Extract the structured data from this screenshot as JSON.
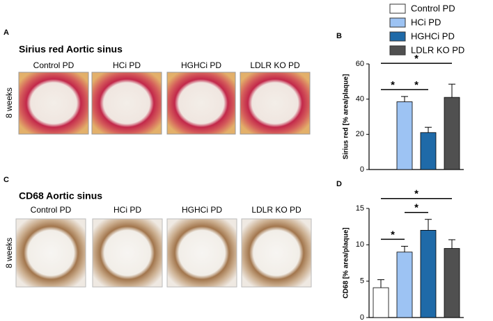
{
  "panel_labels": [
    "A",
    "B",
    "C",
    "D"
  ],
  "sections": [
    {
      "title": "Sirius red Aortic sinus",
      "row_label": "8 weeks",
      "image_labels": [
        "Control PD",
        "HCi PD",
        "HGHCi PD",
        "LDLR KO PD"
      ]
    },
    {
      "title": "CD68 Aortic sinus",
      "row_label": "8 weeks",
      "image_labels": [
        "Control PD",
        "HCi PD",
        "HGHCi PD",
        "LDLR KO PD"
      ]
    }
  ],
  "chart_data": [
    {
      "type": "bar",
      "y_label": "Sirius red [% area/plaque]",
      "categories": [
        "Control PD",
        "HCi PD",
        "HGHCi PD",
        "LDLR KO PD"
      ],
      "values": [
        null,
        38.5,
        21,
        41
      ],
      "errors": [
        null,
        3,
        3,
        7.5
      ],
      "colors": [
        "#ffffff",
        "#9dc3f3",
        "#1f6aa8",
        "#505050"
      ],
      "ylim": [
        0,
        60
      ],
      "yticks": [
        0,
        20,
        40,
        60
      ],
      "annotations": [
        {
          "text": "*",
          "between": [
            "Control PD",
            "HCi PD"
          ]
        },
        {
          "text": "*",
          "between": [
            "HCi PD",
            "HGHCi PD"
          ]
        },
        {
          "text": "*",
          "between": [
            "Control PD",
            "LDLR KO PD"
          ]
        }
      ]
    },
    {
      "type": "bar",
      "y_label": "CD68 [% area/plaque]",
      "categories": [
        "Control PD",
        "HCi PD",
        "HGHCi PD",
        "LDLR KO PD"
      ],
      "values": [
        4.1,
        9.0,
        12.0,
        9.5
      ],
      "errors": [
        1.1,
        0.8,
        1.5,
        1.2
      ],
      "colors": [
        "#ffffff",
        "#9dc3f3",
        "#1f6aa8",
        "#505050"
      ],
      "ylim": [
        0,
        15
      ],
      "yticks": [
        0,
        5,
        10,
        15
      ],
      "annotations": [
        {
          "text": "*",
          "between": [
            "Control PD",
            "HCi PD"
          ]
        },
        {
          "text": "*",
          "between": [
            "HCi PD",
            "HGHCi PD"
          ]
        },
        {
          "text": "*",
          "between": [
            "Control PD",
            "LDLR KO PD"
          ]
        }
      ]
    }
  ]
}
